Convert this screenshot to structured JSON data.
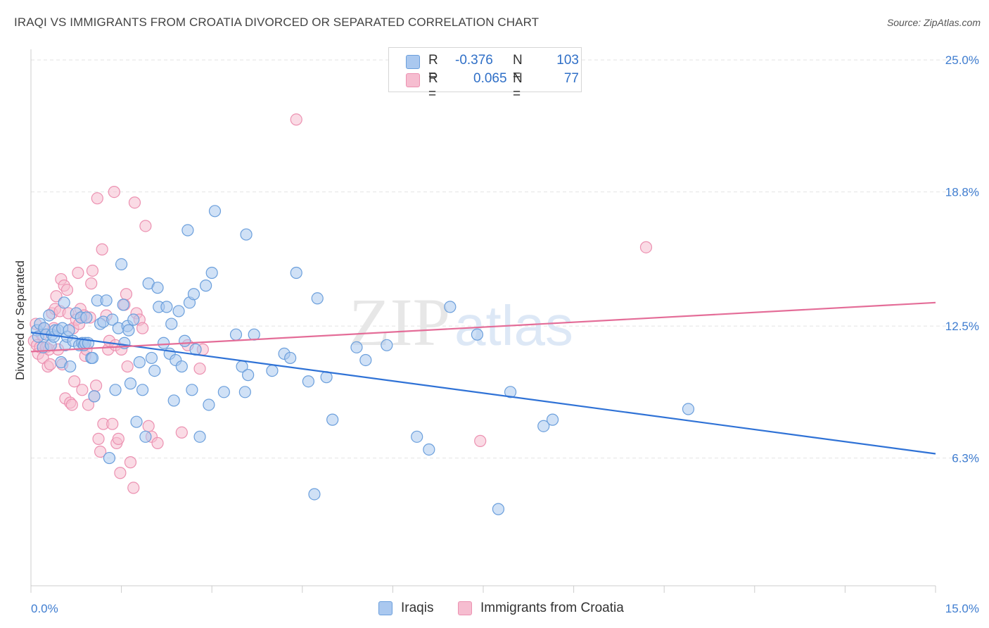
{
  "title": "IRAQI VS IMMIGRANTS FROM CROATIA DIVORCED OR SEPARATED CORRELATION CHART",
  "source": "Source: ZipAtlas.com",
  "watermark": {
    "zip": "ZIP",
    "atlas": "atlas"
  },
  "legend": {
    "rows": [
      {
        "r_label": "R =",
        "r_value": "-0.376",
        "n_label": "N =",
        "n_value": "103"
      },
      {
        "r_label": "R =",
        "r_value": "0.065",
        "n_label": "N =",
        "n_value": "77"
      }
    ]
  },
  "bottom_legend": {
    "iraqis": "Iraqis",
    "croatia": "Immigrants from Croatia"
  },
  "colors": {
    "iraqis_fill": "#aac8ef",
    "iraqis_stroke": "#6b9fdc",
    "iraqis_line": "#2f72d6",
    "croatia_fill": "#f6bdd0",
    "croatia_stroke": "#ec91b1",
    "croatia_line": "#e46d98",
    "tick_label": "#3f7dd0",
    "grid": "#e3e3e3"
  },
  "chart_data": {
    "type": "scatter",
    "title": "IRAQI VS IMMIGRANTS FROM CROATIA DIVORCED OR SEPARATED CORRELATION CHART",
    "xlabel": "",
    "ylabel": "Divorced or Separated",
    "xlim": [
      0,
      15
    ],
    "ylim": [
      0.3,
      25.5
    ],
    "x_tick_labels": [
      {
        "value": 0,
        "label": "0.0%"
      },
      {
        "value": 15,
        "label": "15.0%"
      }
    ],
    "y_tick_labels": [
      {
        "value": 25.0,
        "label": "25.0%"
      },
      {
        "value": 18.8,
        "label": "18.8%"
      },
      {
        "value": 12.5,
        "label": "12.5%"
      },
      {
        "value": 6.3,
        "label": "6.3%"
      }
    ],
    "grid": true,
    "legend_position": "top-center",
    "series": [
      {
        "name": "Iraqis",
        "r": -0.376,
        "n": 103,
        "trend": {
          "x": [
            0,
            15
          ],
          "y": [
            12.2,
            6.5
          ]
        },
        "points": [
          [
            0.1,
            12.3
          ],
          [
            0.12,
            12.0
          ],
          [
            0.15,
            12.6
          ],
          [
            0.2,
            11.5
          ],
          [
            0.22,
            12.4
          ],
          [
            0.25,
            12.1
          ],
          [
            0.3,
            13.0
          ],
          [
            0.33,
            11.6
          ],
          [
            0.35,
            12.1
          ],
          [
            0.38,
            12.0
          ],
          [
            0.4,
            12.3
          ],
          [
            0.45,
            12.3
          ],
          [
            0.5,
            10.8
          ],
          [
            0.52,
            12.4
          ],
          [
            0.55,
            13.6
          ],
          [
            0.57,
            11.6
          ],
          [
            0.6,
            12.0
          ],
          [
            0.63,
            12.3
          ],
          [
            0.65,
            10.6
          ],
          [
            0.7,
            11.8
          ],
          [
            0.75,
            13.1
          ],
          [
            0.8,
            11.6
          ],
          [
            0.83,
            12.9
          ],
          [
            0.85,
            11.7
          ],
          [
            0.88,
            11.6
          ],
          [
            0.9,
            11.7
          ],
          [
            0.92,
            12.9
          ],
          [
            0.95,
            11.7
          ],
          [
            1.0,
            11.0
          ],
          [
            1.02,
            11.0
          ],
          [
            1.05,
            9.2
          ],
          [
            1.1,
            13.7
          ],
          [
            1.15,
            12.6
          ],
          [
            1.2,
            12.7
          ],
          [
            1.25,
            13.7
          ],
          [
            1.3,
            6.3
          ],
          [
            1.35,
            12.8
          ],
          [
            1.4,
            9.5
          ],
          [
            1.45,
            12.4
          ],
          [
            1.5,
            15.4
          ],
          [
            1.53,
            13.5
          ],
          [
            1.55,
            11.7
          ],
          [
            1.6,
            12.5
          ],
          [
            1.62,
            12.3
          ],
          [
            1.65,
            9.8
          ],
          [
            1.7,
            12.8
          ],
          [
            1.75,
            8.0
          ],
          [
            1.8,
            10.8
          ],
          [
            1.85,
            9.5
          ],
          [
            1.9,
            7.3
          ],
          [
            1.95,
            14.5
          ],
          [
            2.0,
            11.0
          ],
          [
            2.05,
            10.4
          ],
          [
            2.1,
            14.3
          ],
          [
            2.12,
            13.4
          ],
          [
            2.2,
            11.7
          ],
          [
            2.25,
            13.4
          ],
          [
            2.3,
            11.2
          ],
          [
            2.33,
            12.6
          ],
          [
            2.37,
            9.0
          ],
          [
            2.4,
            10.9
          ],
          [
            2.45,
            13.2
          ],
          [
            2.5,
            10.6
          ],
          [
            2.55,
            11.8
          ],
          [
            2.6,
            17.0
          ],
          [
            2.63,
            13.6
          ],
          [
            2.67,
            9.5
          ],
          [
            2.7,
            14.0
          ],
          [
            2.73,
            11.4
          ],
          [
            2.8,
            7.3
          ],
          [
            2.9,
            14.4
          ],
          [
            2.95,
            8.8
          ],
          [
            3.0,
            15.0
          ],
          [
            3.05,
            17.9
          ],
          [
            3.2,
            9.4
          ],
          [
            3.4,
            12.1
          ],
          [
            3.5,
            10.6
          ],
          [
            3.55,
            9.4
          ],
          [
            3.6,
            10.2
          ],
          [
            3.57,
            16.8
          ],
          [
            3.7,
            12.1
          ],
          [
            4.0,
            10.4
          ],
          [
            4.2,
            11.2
          ],
          [
            4.3,
            11.0
          ],
          [
            4.4,
            15.0
          ],
          [
            4.6,
            9.9
          ],
          [
            4.7,
            4.6
          ],
          [
            4.75,
            13.8
          ],
          [
            4.9,
            10.1
          ],
          [
            5.0,
            8.1
          ],
          [
            5.4,
            11.5
          ],
          [
            5.55,
            10.9
          ],
          [
            5.9,
            11.6
          ],
          [
            6.4,
            7.3
          ],
          [
            6.6,
            6.7
          ],
          [
            6.95,
            13.4
          ],
          [
            7.4,
            12.1
          ],
          [
            7.75,
            3.9
          ],
          [
            7.95,
            9.4
          ],
          [
            8.5,
            7.8
          ],
          [
            8.65,
            8.1
          ],
          [
            10.9,
            8.6
          ]
        ]
      },
      {
        "name": "Immigrants from Croatia",
        "r": 0.065,
        "n": 77,
        "trend": {
          "x": [
            0,
            15
          ],
          "y": [
            11.3,
            13.6
          ]
        },
        "points": [
          [
            0.05,
            11.8
          ],
          [
            0.08,
            12.6
          ],
          [
            0.1,
            11.6
          ],
          [
            0.12,
            11.2
          ],
          [
            0.15,
            11.5
          ],
          [
            0.18,
            12.1
          ],
          [
            0.2,
            11.0
          ],
          [
            0.22,
            12.4
          ],
          [
            0.25,
            11.5
          ],
          [
            0.28,
            10.6
          ],
          [
            0.3,
            11.4
          ],
          [
            0.32,
            10.7
          ],
          [
            0.35,
            13.1
          ],
          [
            0.38,
            12.4
          ],
          [
            0.4,
            13.3
          ],
          [
            0.42,
            13.9
          ],
          [
            0.45,
            11.4
          ],
          [
            0.48,
            13.2
          ],
          [
            0.5,
            14.7
          ],
          [
            0.52,
            10.7
          ],
          [
            0.55,
            14.4
          ],
          [
            0.57,
            9.1
          ],
          [
            0.6,
            14.2
          ],
          [
            0.62,
            13.1
          ],
          [
            0.65,
            8.9
          ],
          [
            0.68,
            8.8
          ],
          [
            0.7,
            12.4
          ],
          [
            0.72,
            9.9
          ],
          [
            0.75,
            12.8
          ],
          [
            0.78,
            15.0
          ],
          [
            0.8,
            12.6
          ],
          [
            0.82,
            13.3
          ],
          [
            0.85,
            9.5
          ],
          [
            0.88,
            13.0
          ],
          [
            0.9,
            11.1
          ],
          [
            0.92,
            11.4
          ],
          [
            0.95,
            8.8
          ],
          [
            0.98,
            12.9
          ],
          [
            1.0,
            14.5
          ],
          [
            1.02,
            15.1
          ],
          [
            1.05,
            9.2
          ],
          [
            1.08,
            9.7
          ],
          [
            1.1,
            18.5
          ],
          [
            1.12,
            7.2
          ],
          [
            1.15,
            6.6
          ],
          [
            1.18,
            16.1
          ],
          [
            1.2,
            7.9
          ],
          [
            1.25,
            13.0
          ],
          [
            1.28,
            11.4
          ],
          [
            1.3,
            11.8
          ],
          [
            1.35,
            7.9
          ],
          [
            1.38,
            18.8
          ],
          [
            1.4,
            11.6
          ],
          [
            1.42,
            7.0
          ],
          [
            1.45,
            7.2
          ],
          [
            1.48,
            5.6
          ],
          [
            1.5,
            11.4
          ],
          [
            1.55,
            13.5
          ],
          [
            1.58,
            14.0
          ],
          [
            1.6,
            10.6
          ],
          [
            1.65,
            6.1
          ],
          [
            1.7,
            4.9
          ],
          [
            1.72,
            18.3
          ],
          [
            1.75,
            13.1
          ],
          [
            1.8,
            12.8
          ],
          [
            1.85,
            12.4
          ],
          [
            1.9,
            17.2
          ],
          [
            1.95,
            7.8
          ],
          [
            2.0,
            7.3
          ],
          [
            2.1,
            7.0
          ],
          [
            2.5,
            7.5
          ],
          [
            2.6,
            11.6
          ],
          [
            2.8,
            10.5
          ],
          [
            2.85,
            11.4
          ],
          [
            4.4,
            22.2
          ],
          [
            7.45,
            7.1
          ],
          [
            10.2,
            16.2
          ]
        ]
      }
    ]
  }
}
